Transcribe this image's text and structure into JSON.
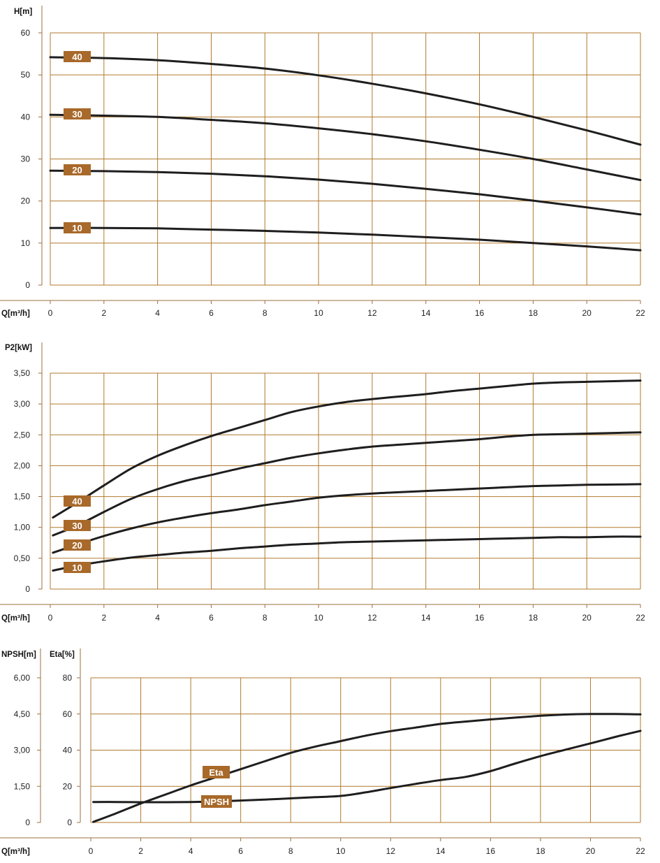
{
  "theme": {
    "grid_color": "#b07a2c",
    "label_bg": "#a8692a",
    "curve_color": "#1e1e1e"
  },
  "chart_data": [
    {
      "type": "line",
      "title": "",
      "ylabel": "H[m]",
      "xlabel": "Q[m³/h]",
      "xlim": [
        0,
        22
      ],
      "ylim": [
        0,
        60
      ],
      "xticks": [
        "0",
        "2",
        "4",
        "6",
        "8",
        "10",
        "12",
        "14",
        "16",
        "18",
        "20",
        "22"
      ],
      "yticks": [
        "0",
        "10",
        "20",
        "30",
        "40",
        "50",
        "60"
      ],
      "series": [
        {
          "name": "40",
          "x": [
            0,
            2,
            4,
            6,
            8,
            10,
            12,
            14,
            16,
            18,
            20,
            22
          ],
          "values": [
            54.2,
            54.0,
            53.5,
            52.6,
            51.5,
            49.9,
            47.9,
            45.6,
            43.0,
            40.0,
            36.8,
            33.4
          ]
        },
        {
          "name": "30",
          "x": [
            0,
            2,
            4,
            6,
            8,
            10,
            12,
            14,
            16,
            18,
            20,
            22
          ],
          "values": [
            40.5,
            40.3,
            40.0,
            39.3,
            38.5,
            37.3,
            35.9,
            34.2,
            32.2,
            30.0,
            27.5,
            25.0
          ]
        },
        {
          "name": "20",
          "x": [
            0,
            2,
            4,
            6,
            8,
            10,
            12,
            14,
            16,
            18,
            20,
            22
          ],
          "values": [
            27.2,
            27.1,
            26.9,
            26.5,
            25.9,
            25.1,
            24.1,
            22.9,
            21.6,
            20.1,
            18.5,
            16.8
          ]
        },
        {
          "name": "10",
          "x": [
            0,
            2,
            4,
            6,
            8,
            10,
            12,
            14,
            16,
            18,
            20,
            22
          ],
          "values": [
            13.6,
            13.6,
            13.5,
            13.2,
            12.9,
            12.5,
            12.0,
            11.4,
            10.8,
            10.0,
            9.2,
            8.3
          ]
        }
      ]
    },
    {
      "type": "line",
      "title": "",
      "ylabel": "P2[kW]",
      "xlabel": "Q[m³/h]",
      "xlim": [
        0,
        22
      ],
      "ylim": [
        0,
        3.5
      ],
      "xticks": [
        "0",
        "2",
        "4",
        "6",
        "8",
        "10",
        "12",
        "14",
        "16",
        "18",
        "20",
        "22"
      ],
      "yticks": [
        "0",
        "0,50",
        "1,00",
        "1,50",
        "2,00",
        "2,50",
        "3,00",
        "3,50"
      ],
      "series": [
        {
          "name": "40",
          "x": [
            0.1,
            1,
            2,
            3,
            4,
            5,
            6,
            7,
            8,
            9,
            10,
            11,
            12,
            13,
            14,
            15,
            16,
            17,
            18,
            19,
            20,
            21,
            22
          ],
          "values": [
            1.16,
            1.4,
            1.68,
            1.95,
            2.16,
            2.33,
            2.48,
            2.61,
            2.74,
            2.87,
            2.96,
            3.03,
            3.08,
            3.12,
            3.16,
            3.21,
            3.25,
            3.29,
            3.33,
            3.35,
            3.36,
            3.37,
            3.38
          ]
        },
        {
          "name": "30",
          "x": [
            0.1,
            1,
            2,
            3,
            4,
            5,
            6,
            7,
            8,
            9,
            10,
            11,
            12,
            13,
            14,
            15,
            16,
            17,
            18,
            19,
            20,
            21,
            22
          ],
          "values": [
            0.87,
            1.03,
            1.25,
            1.46,
            1.62,
            1.75,
            1.85,
            1.95,
            2.04,
            2.13,
            2.2,
            2.26,
            2.31,
            2.34,
            2.37,
            2.4,
            2.43,
            2.47,
            2.5,
            2.51,
            2.52,
            2.53,
            2.54
          ]
        },
        {
          "name": "20",
          "x": [
            0.1,
            1,
            2,
            3,
            4,
            5,
            6,
            7,
            8,
            9,
            10,
            11,
            12,
            13,
            14,
            15,
            16,
            17,
            18,
            19,
            20,
            21,
            22
          ],
          "values": [
            0.59,
            0.72,
            0.86,
            0.98,
            1.08,
            1.16,
            1.23,
            1.29,
            1.36,
            1.42,
            1.48,
            1.52,
            1.55,
            1.57,
            1.59,
            1.61,
            1.63,
            1.65,
            1.67,
            1.68,
            1.69,
            1.695,
            1.7
          ]
        },
        {
          "name": "10",
          "x": [
            0.1,
            1,
            2,
            3,
            4,
            5,
            6,
            7,
            8,
            9,
            10,
            11,
            12,
            13,
            14,
            15,
            16,
            17,
            18,
            19,
            20,
            21,
            22
          ],
          "values": [
            0.3,
            0.38,
            0.45,
            0.51,
            0.55,
            0.59,
            0.62,
            0.66,
            0.69,
            0.72,
            0.74,
            0.76,
            0.77,
            0.78,
            0.79,
            0.8,
            0.81,
            0.82,
            0.83,
            0.84,
            0.84,
            0.85,
            0.85
          ]
        }
      ]
    },
    {
      "type": "line",
      "title": "",
      "ylabel_left": "NPSH[m]",
      "ylabel": "Eta[%]",
      "xlabel": "Q[m³/h]",
      "xlim": [
        0,
        22
      ],
      "ylim": [
        0,
        80
      ],
      "ylim_left": [
        0,
        6
      ],
      "xticks": [
        "0",
        "2",
        "4",
        "6",
        "8",
        "10",
        "12",
        "14",
        "16",
        "18",
        "20",
        "22"
      ],
      "yticks": [
        "0",
        "20",
        "40",
        "60",
        "80"
      ],
      "yticks_left": [
        "0",
        "1,50",
        "3,00",
        "4,50",
        "6,00"
      ],
      "series": [
        {
          "name": "Eta",
          "axis": "Eta[%]",
          "x": [
            0.1,
            1,
            2,
            3,
            4,
            5,
            6,
            7,
            8,
            9,
            10,
            11,
            12,
            13,
            14,
            15,
            16,
            17,
            18,
            19,
            20,
            21,
            22
          ],
          "values": [
            0.3,
            5,
            10.5,
            15.5,
            20.5,
            25,
            29.5,
            34,
            38.5,
            42,
            45,
            48,
            50.5,
            52.5,
            54.5,
            55.8,
            57,
            58,
            59,
            59.7,
            60,
            60,
            59.8
          ]
        },
        {
          "name": "NPSH",
          "axis": "NPSH[m]",
          "x": [
            0.1,
            1,
            2,
            3,
            4,
            5,
            6,
            7,
            8,
            9,
            10,
            11,
            12,
            13,
            14,
            15,
            16,
            17,
            18,
            19,
            20,
            21,
            22
          ],
          "values": [
            0.85,
            0.85,
            0.84,
            0.84,
            0.85,
            0.87,
            0.91,
            0.95,
            1.0,
            1.05,
            1.1,
            1.25,
            1.43,
            1.6,
            1.76,
            1.89,
            2.13,
            2.45,
            2.75,
            3.02,
            3.28,
            3.55,
            3.8
          ]
        }
      ]
    }
  ]
}
